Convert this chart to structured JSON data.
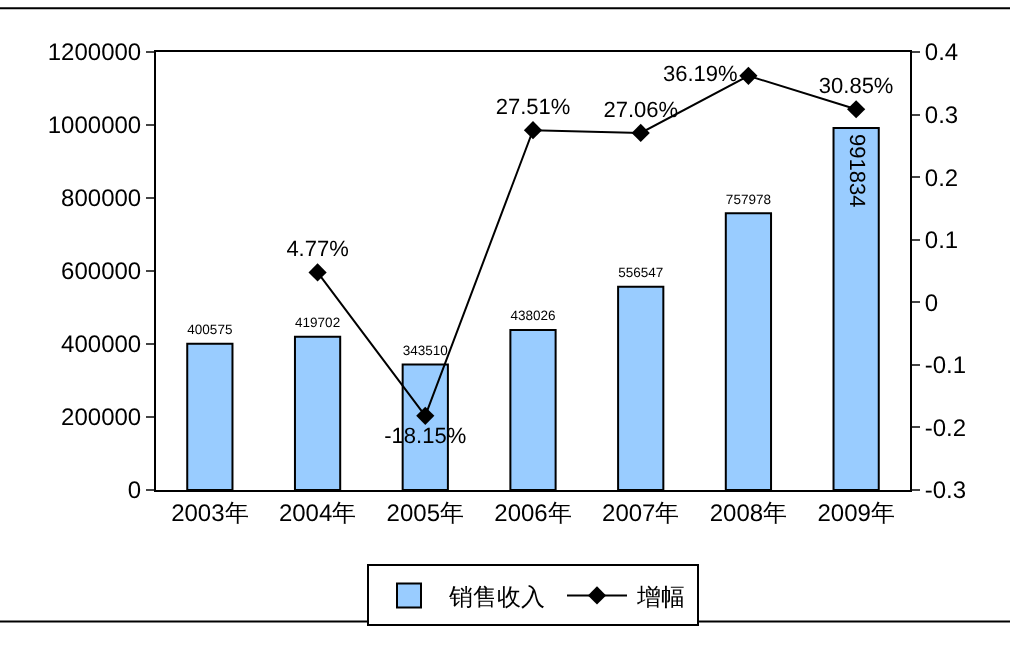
{
  "chart_data": {
    "type": "bar",
    "categories": [
      "2003年",
      "2004年",
      "2005年",
      "2006年",
      "2007年",
      "2008年",
      "2009年"
    ],
    "series": [
      {
        "name": "销售收入",
        "color": "#99ccff",
        "values": [
          400575,
          419702,
          343510,
          438026,
          556547,
          757978,
          991834
        ],
        "data_labels": true
      },
      {
        "name": "增幅",
        "type": "line",
        "axis": "y2",
        "color": "#000000",
        "marker": "diamond",
        "line_style": "solid",
        "values": [
          null,
          0.0477,
          -0.1815,
          0.2751,
          0.2706,
          0.3619,
          0.3085
        ],
        "value_labels": [
          null,
          "4.77%",
          "-18.15%",
          "27.51%",
          "27.06%",
          "36.19%",
          "30.85%"
        ]
      }
    ],
    "ylim": [
      0,
      1200000
    ],
    "yticks": [
      0,
      200000,
      400000,
      600000,
      800000,
      1000000,
      1200000
    ],
    "y2lim": [
      -0.3,
      0.4
    ],
    "y2ticks": [
      -0.3,
      -0.2,
      -0.1,
      0,
      0.1,
      0.2,
      0.3,
      0.4
    ],
    "grid": false,
    "legend": "bottom"
  }
}
